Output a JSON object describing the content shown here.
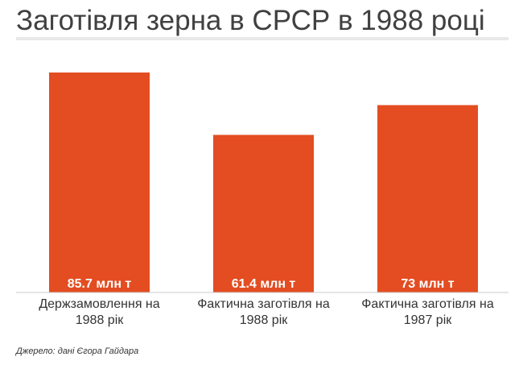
{
  "title": "Заготівля зерна в СРСР в 1988 році",
  "source": "Джерело: дані Єгора Гайдара",
  "colors": {
    "bar": "#e34d21",
    "title_rule": "#e8e8e8",
    "baseline": "#cccccc"
  },
  "chart_data": {
    "type": "bar",
    "title": "Заготівля зерна в СРСР в 1988 році",
    "xlabel": "",
    "ylabel": "",
    "unit": "млн т",
    "grid": false,
    "ylim": [
      0,
      85.7
    ],
    "categories": [
      [
        "Держзамовлення на",
        "1988 рік"
      ],
      [
        "Фактична заготівля на",
        "1988 рік"
      ],
      [
        "Фактична заготівля на",
        "1987 рік"
      ]
    ],
    "values": [
      85.7,
      61.4,
      73
    ],
    "data_labels": [
      "85.7 млн т",
      "61.4 млн т",
      "73 млн т"
    ]
  }
}
